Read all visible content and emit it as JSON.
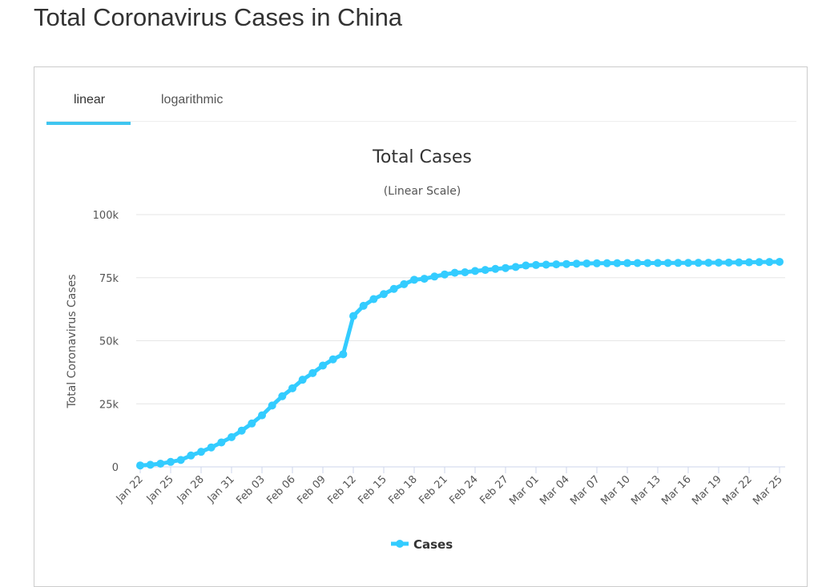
{
  "page": {
    "title": "Total Coronavirus Cases in China"
  },
  "tabs": [
    {
      "label": "linear",
      "active": true
    },
    {
      "label": "logarithmic",
      "active": false
    }
  ],
  "colors": {
    "accent": "#3fc5f0",
    "series": "#33ccff"
  },
  "chart_data": {
    "type": "line",
    "title": "Total Cases",
    "subtitle": "(Linear Scale)",
    "xlabel": "",
    "ylabel": "Total Coronavirus Cases",
    "ylim": [
      0,
      100000
    ],
    "yticks": [
      {
        "v": 0,
        "label": "0"
      },
      {
        "v": 25000,
        "label": "25k"
      },
      {
        "v": 50000,
        "label": "50k"
      },
      {
        "v": 75000,
        "label": "75k"
      },
      {
        "v": 100000,
        "label": "100k"
      }
    ],
    "xtick_labels": [
      "Jan 22",
      "Jan 25",
      "Jan 28",
      "Jan 31",
      "Feb 03",
      "Feb 06",
      "Feb 09",
      "Feb 12",
      "Feb 15",
      "Feb 18",
      "Feb 21",
      "Feb 24",
      "Feb 27",
      "Mar 01",
      "Mar 04",
      "Mar 07",
      "Mar 10",
      "Mar 13",
      "Mar 16",
      "Mar 19",
      "Mar 22",
      "Mar 25"
    ],
    "legend": "bottom-center",
    "series": [
      {
        "name": "Cases",
        "values": [
          571,
          830,
          1287,
          1975,
          2744,
          4515,
          5974,
          7711,
          9692,
          11791,
          14380,
          17205,
          20438,
          24324,
          28018,
          31161,
          34546,
          37198,
          40171,
          42638,
          44653,
          59804,
          63851,
          66492,
          68500,
          70548,
          72436,
          74185,
          74576,
          75465,
          76288,
          76936,
          77150,
          77658,
          78064,
          78497,
          78824,
          79251,
          79824,
          80026,
          80151,
          80270,
          80409,
          80552,
          80651,
          80695,
          80735,
          80754,
          80778,
          80793,
          80813,
          80824,
          80844,
          80860,
          80881,
          80894,
          80928,
          80967,
          81008,
          81054,
          81093,
          81171,
          81218,
          81285
        ]
      }
    ]
  }
}
